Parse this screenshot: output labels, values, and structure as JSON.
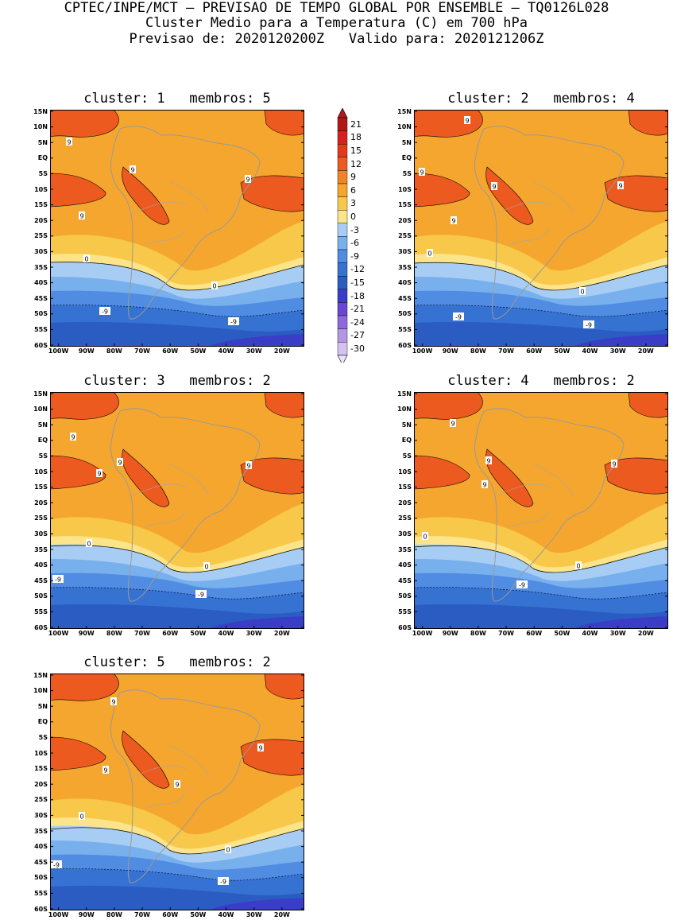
{
  "header": {
    "line1": "CPTEC/INPE/MCT – PREVISAO DE TEMPO GLOBAL POR ENSEMBLE – TQ0126L028",
    "line2": "Cluster Medio para a Temperatura (C) em 700 hPa",
    "line3": "Previsao de: 2020120200Z   Valido para: 2020121206Z"
  },
  "axes": {
    "lat_labels": [
      "15N",
      "10N",
      "5N",
      "EQ",
      "5S",
      "10S",
      "15S",
      "20S",
      "25S",
      "30S",
      "35S",
      "40S",
      "45S",
      "50S",
      "55S",
      "60S"
    ],
    "lon_labels": [
      "100W",
      "90W",
      "80W",
      "70W",
      "60W",
      "50W",
      "40W",
      "30W",
      "20W"
    ]
  },
  "colorbar": {
    "labels": [
      "21",
      "18",
      "15",
      "12",
      "9",
      "6",
      "3",
      "0",
      "-3",
      "-6",
      "-9",
      "-12",
      "-15",
      "-18",
      "-21",
      "-24",
      "-27",
      "-30"
    ],
    "colors": [
      "#b01818",
      "#d42020",
      "#e43a1c",
      "#ec5a20",
      "#f08426",
      "#f5a62e",
      "#f8c84a",
      "#fbe48a",
      "#a8cdf4",
      "#78b0ee",
      "#4f8ce2",
      "#3672d2",
      "#2a5cc2",
      "#3a3ec6",
      "#6a46d4",
      "#9068dc",
      "#b496e6",
      "#d4c2f0"
    ],
    "cap_top": "#b01818",
    "cap_bottom": "#ece4fa"
  },
  "panels": [
    {
      "title": "cluster: 1   membros: 5",
      "contour_labels": [
        "9",
        "9",
        "9",
        "9",
        "0",
        "0",
        "-9",
        "-9"
      ]
    },
    {
      "title": "cluster: 2   membros: 4",
      "contour_labels": [
        "9",
        "9",
        "9",
        "9",
        "9",
        "0",
        "0",
        "-9",
        "-9"
      ]
    },
    {
      "title": "cluster: 3   membros: 2",
      "contour_labels": [
        "9",
        "9",
        "9",
        "9",
        "0",
        "0",
        "-9",
        "-9"
      ]
    },
    {
      "title": "cluster: 4   membros: 2",
      "contour_labels": [
        "9",
        "9",
        "9",
        "9",
        "0",
        "0",
        "-9"
      ]
    },
    {
      "title": "cluster: 5   membros: 2",
      "contour_labels": [
        "9",
        "9",
        "9",
        "9",
        "0",
        "0",
        "-9",
        "-9"
      ]
    }
  ]
}
